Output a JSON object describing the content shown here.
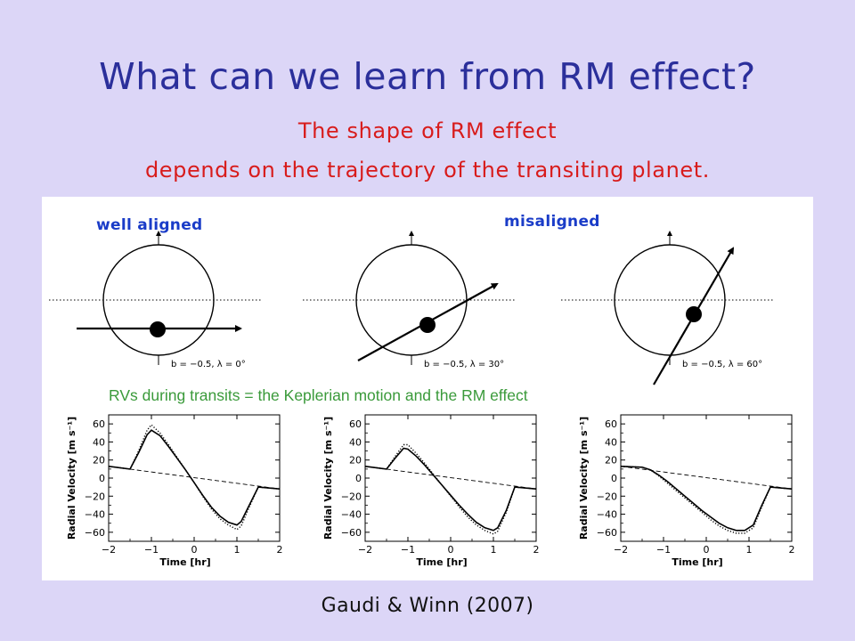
{
  "slide": {
    "title": "What can we learn from RM effect?",
    "subtitle_line1": "The shape of RM effect",
    "subtitle_line2": "depends on the trajectory of the transiting planet.",
    "credit": "Gaudi & Winn (2007)",
    "caption_rv": "RVs during transits = the Keplerian motion and the RM effect"
  },
  "colors": {
    "background": "#dcd6f7",
    "title": "#2b2f9b",
    "subtitle": "#d81c1c",
    "label_blue": "#1a3cc8",
    "caption_green": "#3a9a3a"
  },
  "geometry_panels": [
    {
      "label": "well aligned",
      "params": "b = −0.5, λ = 0°",
      "lambda_deg": 0,
      "impact_b": -0.5
    },
    {
      "label": "",
      "params": "b = −0.5, λ = 30°",
      "lambda_deg": 30,
      "impact_b": -0.5
    },
    {
      "label": "",
      "params": "b = −0.5, λ = 60°",
      "lambda_deg": 60,
      "impact_b": -0.5
    }
  ],
  "misaligned_label": "misaligned",
  "chart_data": [
    {
      "type": "line",
      "xlabel": "Time [hr]",
      "ylabel": "Radial Velocity [m s⁻¹]",
      "xlim": [
        -2,
        2
      ],
      "ylim": [
        -70,
        70
      ],
      "xticks": [
        "−2",
        "−1",
        "0",
        "1",
        "2"
      ],
      "yticks": [
        "60",
        "40",
        "20",
        "0",
        "−20",
        "−40",
        "−60"
      ],
      "series": [
        {
          "style": "solid",
          "x": [
            -2.0,
            -1.5,
            -1.3,
            -1.1,
            -1.0,
            -0.8,
            -0.6,
            -0.4,
            -0.2,
            0.0,
            0.2,
            0.4,
            0.6,
            0.8,
            1.0,
            1.1,
            1.3,
            1.5,
            2.0
          ],
          "y": [
            13,
            10,
            28,
            48,
            53,
            47,
            35,
            22,
            9,
            -5,
            -19,
            -32,
            -42,
            -49,
            -52,
            -48,
            -29,
            -10,
            -12
          ]
        },
        {
          "style": "dotted",
          "x": [
            -2.0,
            -1.5,
            -1.3,
            -1.1,
            -1.0,
            -0.8,
            -0.6,
            -0.4,
            -0.2,
            0.0,
            0.2,
            0.4,
            0.6,
            0.8,
            1.0,
            1.1,
            1.3,
            1.5,
            2.0
          ],
          "y": [
            13,
            10,
            30,
            53,
            59,
            50,
            37,
            23,
            9,
            -5,
            -20,
            -34,
            -45,
            -52,
            -57,
            -53,
            -31,
            -10,
            -12
          ]
        },
        {
          "style": "dashed",
          "x": [
            -2,
            2
          ],
          "y": [
            13,
            -12
          ]
        }
      ]
    },
    {
      "type": "line",
      "xlabel": "Time [hr]",
      "ylabel": "Radial Velocity [m s⁻¹]",
      "xlim": [
        -2,
        2
      ],
      "ylim": [
        -70,
        70
      ],
      "xticks": [
        "−2",
        "−1",
        "0",
        "1",
        "2"
      ],
      "yticks": [
        "60",
        "40",
        "20",
        "0",
        "−20",
        "−40",
        "−60"
      ],
      "series": [
        {
          "style": "solid",
          "x": [
            -2.0,
            -1.5,
            -1.3,
            -1.1,
            -1.0,
            -0.8,
            -0.6,
            -0.4,
            -0.2,
            0.0,
            0.2,
            0.4,
            0.6,
            0.8,
            1.0,
            1.1,
            1.3,
            1.5,
            2.0
          ],
          "y": [
            13,
            10,
            22,
            33,
            32,
            24,
            14,
            3,
            -8,
            -19,
            -30,
            -40,
            -49,
            -55,
            -58,
            -55,
            -36,
            -10,
            -12
          ]
        },
        {
          "style": "dotted",
          "x": [
            -2.0,
            -1.5,
            -1.3,
            -1.1,
            -1.0,
            -0.8,
            -0.6,
            -0.4,
            -0.2,
            0.0,
            0.2,
            0.4,
            0.6,
            0.8,
            1.0,
            1.1,
            1.3,
            1.5,
            2.0
          ],
          "y": [
            13,
            10,
            24,
            37,
            37,
            27,
            16,
            4,
            -8,
            -20,
            -32,
            -43,
            -52,
            -58,
            -62,
            -59,
            -38,
            -10,
            -12
          ]
        },
        {
          "style": "dashed",
          "x": [
            -2,
            2
          ],
          "y": [
            13,
            -12
          ]
        }
      ]
    },
    {
      "type": "line",
      "xlabel": "Time [hr]",
      "ylabel": "Radial Velocity [m s⁻¹]",
      "xlim": [
        -2,
        2
      ],
      "ylim": [
        -70,
        70
      ],
      "xticks": [
        "−2",
        "−1",
        "0",
        "1",
        "2"
      ],
      "yticks": [
        "60",
        "40",
        "20",
        "0",
        "−20",
        "−40",
        "−60"
      ],
      "series": [
        {
          "style": "solid",
          "x": [
            -2.0,
            -1.5,
            -1.3,
            -1.1,
            -0.9,
            -0.7,
            -0.5,
            -0.3,
            -0.1,
            0.1,
            0.3,
            0.5,
            0.7,
            0.9,
            1.1,
            1.3,
            1.5,
            2.0
          ],
          "y": [
            13,
            12,
            9,
            3,
            -4,
            -12,
            -20,
            -28,
            -36,
            -43,
            -50,
            -55,
            -58,
            -58,
            -52,
            -30,
            -10,
            -12
          ]
        },
        {
          "style": "dotted",
          "x": [
            -2.0,
            -1.5,
            -1.3,
            -1.1,
            -0.9,
            -0.7,
            -0.5,
            -0.3,
            -0.1,
            0.1,
            0.3,
            0.5,
            0.7,
            0.9,
            1.1,
            1.3,
            1.5,
            2.0
          ],
          "y": [
            13,
            12,
            9,
            2,
            -6,
            -14,
            -22,
            -30,
            -38,
            -46,
            -53,
            -58,
            -61,
            -61,
            -55,
            -32,
            -10,
            -12
          ]
        },
        {
          "style": "dashed",
          "x": [
            -2,
            2
          ],
          "y": [
            13,
            -12
          ]
        }
      ]
    }
  ]
}
